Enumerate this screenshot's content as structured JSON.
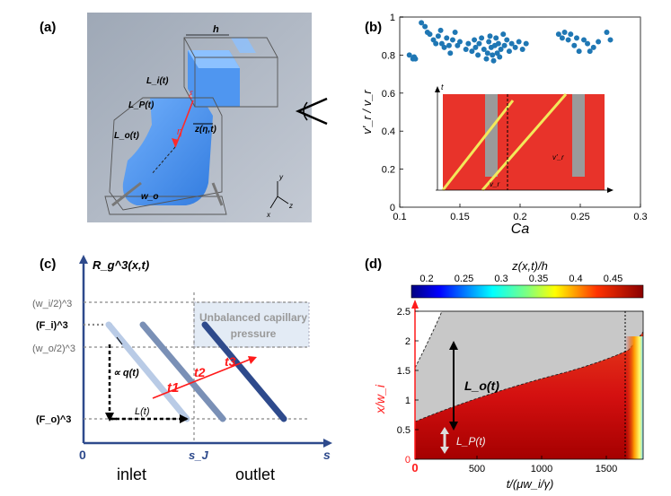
{
  "panels": {
    "a": {
      "label": "(a)",
      "dims": {
        "h": "h",
        "Li": "L_i(t)",
        "LP": "L_P(t)",
        "Lo": "L_o(t)",
        "z": "z(η,t)",
        "eta": "η",
        "wo": "w_o",
        "xi": "ξ"
      },
      "axes": {
        "x": "x",
        "y": "y",
        "z": "z"
      }
    },
    "b": {
      "label": "(b)",
      "xlabel": "Ca",
      "ylabel": "v'_r / v_r",
      "inset_axes": {
        "x": "t",
        "y": "x",
        "vr": "v_r",
        "vrp": "v'_r"
      }
    },
    "c": {
      "label": "(c)",
      "yaxis_label": "R_g^3(x,t)",
      "ylevels": [
        "(w_i/2)^3",
        "(F_i)^3",
        "(w_o/2)^3",
        "(F_o)^3"
      ],
      "origin": "0",
      "sJ": "s_J",
      "saxis": "s",
      "region_inlet": "inlet",
      "region_outlet": "outlet",
      "unbalanced_l1": "Unbalanced capillary",
      "unbalanced_l2": "pressure",
      "q_label": "∝ q(t)",
      "L_label": "L(t)",
      "t_labels": [
        "t1",
        "t2",
        "t3"
      ]
    },
    "d": {
      "label": "(d)",
      "colorbar_title": "z(x,t)/h",
      "colorbar_ticks": [
        "0.2",
        "0.25",
        "0.3",
        "0.35",
        "0.4",
        "0.45"
      ],
      "xlabel": "t/(μw_i/γ)",
      "ylabel": "x/w_i",
      "Lo_label": "L_o(t)",
      "LP_label": "L_P(t)"
    }
  },
  "chart_data": {
    "type": "scatter",
    "xlabel": "Ca",
    "ylabel": "v'_r / v_r",
    "xlim": [
      0.1,
      0.3
    ],
    "ylim": [
      0,
      1
    ],
    "xticks": [
      0.1,
      0.15,
      0.2,
      0.25,
      0.3
    ],
    "yticks": [
      0,
      0.2,
      0.4,
      0.6,
      0.8,
      1
    ],
    "reference_line": 1,
    "grid": false,
    "series": [
      {
        "points": [
          [
            0.108,
            0.8
          ],
          [
            0.111,
            0.78
          ],
          [
            0.112,
            0.79
          ],
          [
            0.113,
            0.78
          ],
          [
            0.118,
            0.97
          ],
          [
            0.121,
            0.95
          ],
          [
            0.123,
            0.92
          ],
          [
            0.125,
            0.91
          ],
          [
            0.128,
            0.88
          ],
          [
            0.13,
            0.86
          ],
          [
            0.132,
            0.9
          ],
          [
            0.134,
            0.93
          ],
          [
            0.135,
            0.86
          ],
          [
            0.137,
            0.84
          ],
          [
            0.139,
            0.89
          ],
          [
            0.141,
            0.85
          ],
          [
            0.142,
            0.81
          ],
          [
            0.144,
            0.88
          ],
          [
            0.146,
            0.92
          ],
          [
            0.148,
            0.85
          ],
          [
            0.15,
            0.87
          ],
          [
            0.155,
            0.83
          ],
          [
            0.157,
            0.86
          ],
          [
            0.16,
            0.82
          ],
          [
            0.162,
            0.88
          ],
          [
            0.163,
            0.84
          ],
          [
            0.165,
            0.8
          ],
          [
            0.166,
            0.86
          ],
          [
            0.168,
            0.89
          ],
          [
            0.17,
            0.83
          ],
          [
            0.172,
            0.78
          ],
          [
            0.173,
            0.81
          ],
          [
            0.174,
            0.87
          ],
          [
            0.175,
            0.9
          ],
          [
            0.176,
            0.84
          ],
          [
            0.177,
            0.8
          ],
          [
            0.178,
            0.77
          ],
          [
            0.179,
            0.85
          ],
          [
            0.18,
            0.89
          ],
          [
            0.181,
            0.81
          ],
          [
            0.182,
            0.86
          ],
          [
            0.183,
            0.79
          ],
          [
            0.184,
            0.83
          ],
          [
            0.186,
            0.91
          ],
          [
            0.187,
            0.85
          ],
          [
            0.189,
            0.88
          ],
          [
            0.191,
            0.82
          ],
          [
            0.193,
            0.86
          ],
          [
            0.196,
            0.84
          ],
          [
            0.199,
            0.87
          ],
          [
            0.202,
            0.83
          ],
          [
            0.205,
            0.86
          ],
          [
            0.232,
            0.91
          ],
          [
            0.235,
            0.89
          ],
          [
            0.237,
            0.92
          ],
          [
            0.24,
            0.88
          ],
          [
            0.242,
            0.91
          ],
          [
            0.245,
            0.85
          ],
          [
            0.247,
            0.89
          ],
          [
            0.249,
            0.82
          ],
          [
            0.253,
            0.88
          ],
          [
            0.256,
            0.86
          ],
          [
            0.258,
            0.82
          ],
          [
            0.261,
            0.84
          ],
          [
            0.265,
            0.87
          ],
          [
            0.272,
            0.92
          ],
          [
            0.275,
            0.88
          ]
        ]
      }
    ]
  }
}
